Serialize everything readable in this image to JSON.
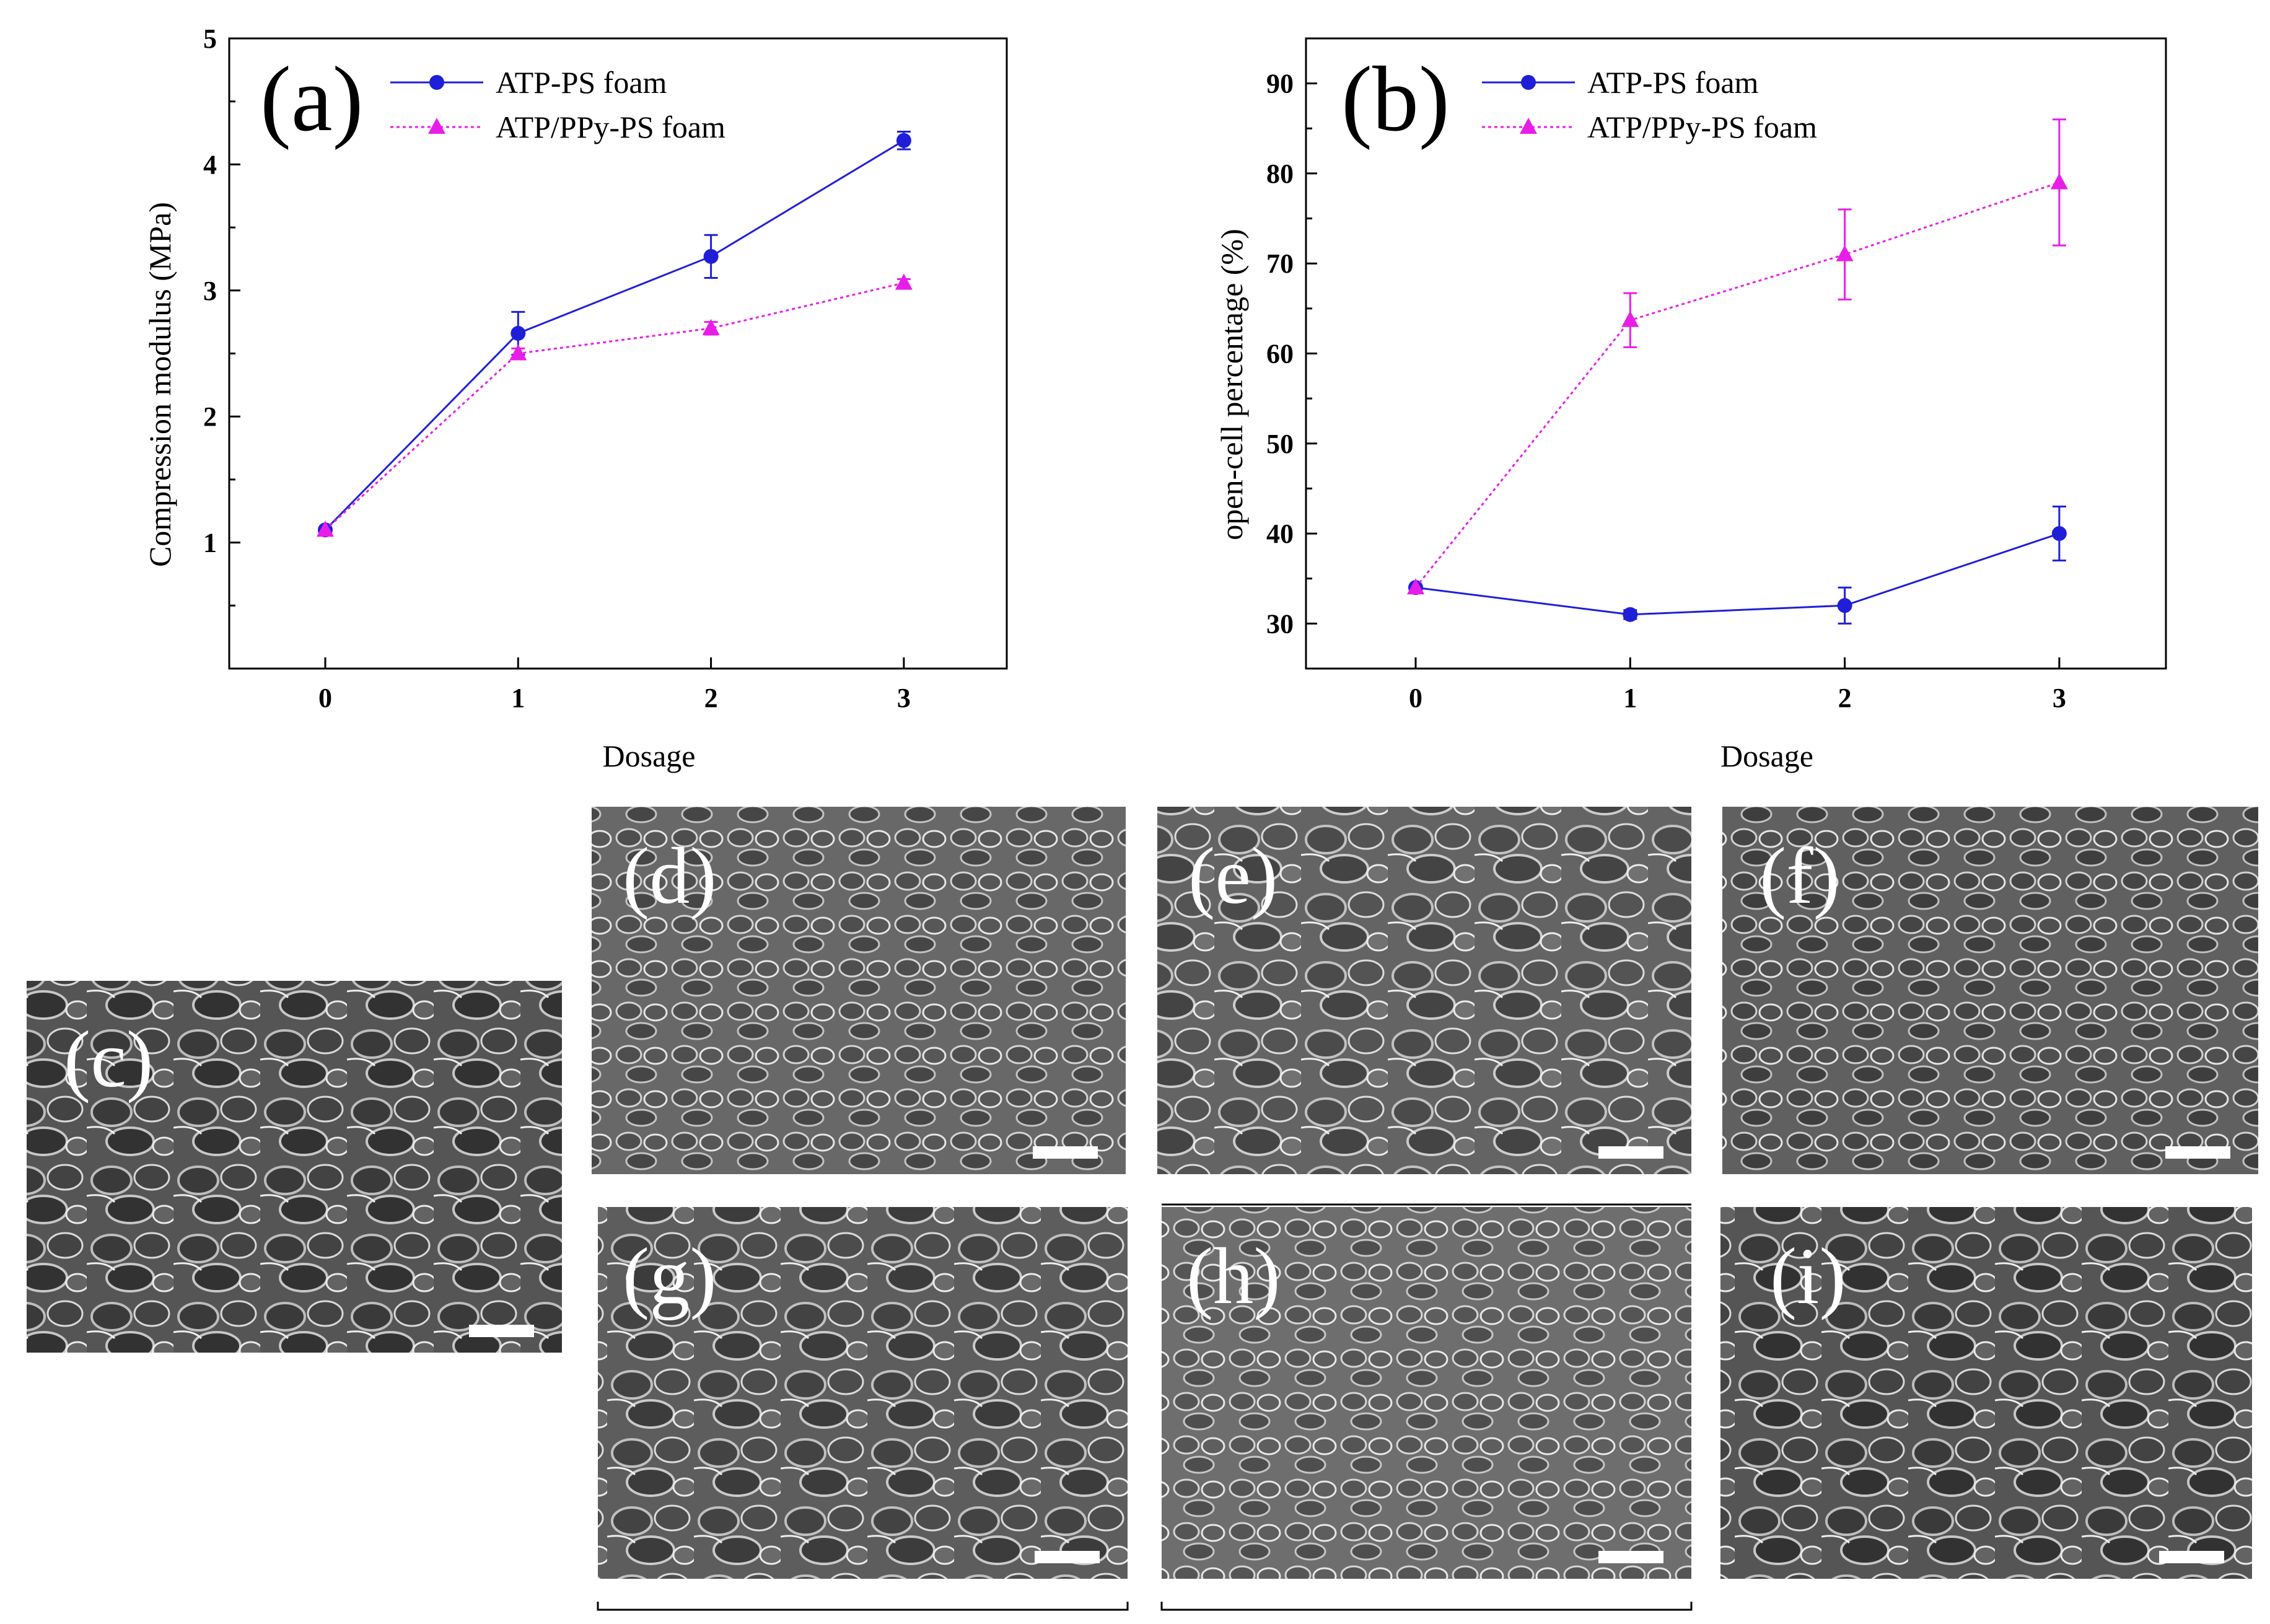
{
  "colors": {
    "series1": "#1f1fd8",
    "series2": "#e81ee8"
  },
  "chart_data": [
    {
      "type": "line",
      "panel_label": "(a)",
      "xlabel": "Dosage",
      "ylabel": "Compression modulus (MPa)",
      "x": [
        0,
        1,
        2,
        3
      ],
      "xticks": [
        "0",
        "1",
        "2",
        "3"
      ],
      "ylim": [
        0,
        5
      ],
      "yticks": [
        "1",
        "2",
        "3",
        "4",
        "5"
      ],
      "series": [
        {
          "name": "ATP-PS foam",
          "values": [
            1.1,
            2.66,
            3.27,
            4.19
          ],
          "errors": [
            0,
            0.17,
            0.17,
            0.07
          ]
        },
        {
          "name": "ATP/PPy-PS foam",
          "values": [
            1.1,
            2.5,
            2.7,
            3.06
          ],
          "errors": [
            0,
            0.04,
            0.05,
            0.03
          ]
        }
      ]
    },
    {
      "type": "line",
      "panel_label": "(b)",
      "xlabel": "Dosage",
      "ylabel": "open-cell percentage (%)",
      "x": [
        0,
        1,
        2,
        3
      ],
      "xticks": [
        "0",
        "1",
        "2",
        "3"
      ],
      "ylim": [
        25,
        95
      ],
      "yticks": [
        "30",
        "40",
        "50",
        "60",
        "70",
        "80",
        "90"
      ],
      "series": [
        {
          "name": "ATP-PS foam",
          "values": [
            34,
            31,
            32,
            40
          ],
          "errors": [
            0,
            0.5,
            2,
            3
          ]
        },
        {
          "name": "ATP/PPy-PS foam",
          "values": [
            34,
            63.7,
            71,
            79
          ],
          "errors": [
            0,
            3,
            5,
            7
          ]
        }
      ]
    }
  ],
  "sem_panels": [
    {
      "key": "c",
      "label": "(c)"
    },
    {
      "key": "d",
      "label": "(d)"
    },
    {
      "key": "e",
      "label": "(e)"
    },
    {
      "key": "f",
      "label": "(f)"
    },
    {
      "key": "g",
      "label": "(g)"
    },
    {
      "key": "h",
      "label": "(h)"
    },
    {
      "key": "i",
      "label": "(i)"
    }
  ]
}
